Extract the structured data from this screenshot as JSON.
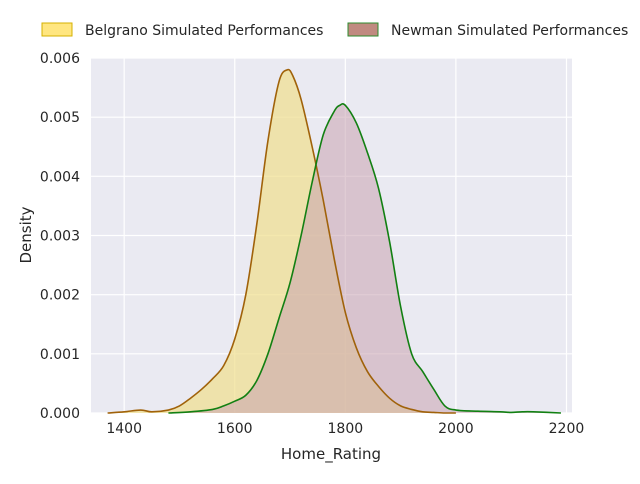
{
  "chart_data": {
    "type": "area",
    "title": "",
    "xlabel": "Home_Rating",
    "ylabel": "Density",
    "xlim": [
      1340,
      2210
    ],
    "ylim": [
      0,
      0.006
    ],
    "xticks": [
      1400,
      1600,
      1800,
      2000,
      2200
    ],
    "yticks": [
      0.0,
      0.001,
      0.002,
      0.003,
      0.004,
      0.005,
      0.006
    ],
    "xtick_labels": [
      "1400",
      "1600",
      "1800",
      "2000",
      "2200"
    ],
    "ytick_labels": [
      "0.000",
      "0.001",
      "0.002",
      "0.003",
      "0.004",
      "0.005",
      "0.006"
    ],
    "grid": true,
    "background": "#eaeaf2",
    "legend_position": "top",
    "series": [
      {
        "name": "Belgrano Simulated Performances",
        "fill_color": "#f0df8f",
        "legend_fill": "#ffe680",
        "legend_edge": "#d4b000",
        "line_color": "#a0620a",
        "x": [
          1370,
          1400,
          1430,
          1450,
          1480,
          1500,
          1520,
          1540,
          1560,
          1580,
          1600,
          1620,
          1640,
          1660,
          1680,
          1695,
          1705,
          1720,
          1740,
          1760,
          1780,
          1800,
          1820,
          1840,
          1860,
          1880,
          1900,
          1920,
          1940,
          1960,
          1980,
          2000
        ],
        "y": [
          0.0,
          2e-05,
          5e-05,
          2e-05,
          5e-05,
          0.00012,
          0.00025,
          0.0004,
          0.00058,
          0.0008,
          0.00125,
          0.002,
          0.0032,
          0.0046,
          0.0056,
          0.0058,
          0.0057,
          0.0053,
          0.0045,
          0.0036,
          0.0026,
          0.0017,
          0.0011,
          0.0007,
          0.00045,
          0.00025,
          0.00012,
          6e-05,
          2e-05,
          1e-05,
          0.0,
          0.0
        ]
      },
      {
        "name": "Newman Simulated Performances",
        "fill_color": "#c9a3b0",
        "legend_fill": "#c08a80",
        "legend_edge": "#2e8b2e",
        "line_color": "#128012",
        "x": [
          1480,
          1520,
          1560,
          1580,
          1600,
          1620,
          1640,
          1660,
          1680,
          1700,
          1720,
          1740,
          1760,
          1780,
          1790,
          1800,
          1820,
          1840,
          1860,
          1880,
          1900,
          1920,
          1940,
          1960,
          1980,
          2000,
          2040,
          2080,
          2100,
          2120,
          2140,
          2190
        ],
        "y": [
          0.0,
          2e-05,
          6e-05,
          0.00012,
          0.0002,
          0.0003,
          0.00055,
          0.001,
          0.0016,
          0.0022,
          0.003,
          0.0039,
          0.0047,
          0.0051,
          0.0052,
          0.0052,
          0.0049,
          0.0044,
          0.0038,
          0.0029,
          0.0018,
          0.001,
          0.0007,
          0.0004,
          0.00012,
          5e-05,
          3e-05,
          2e-05,
          1e-05,
          2e-05,
          2e-05,
          0.0
        ]
      }
    ]
  }
}
